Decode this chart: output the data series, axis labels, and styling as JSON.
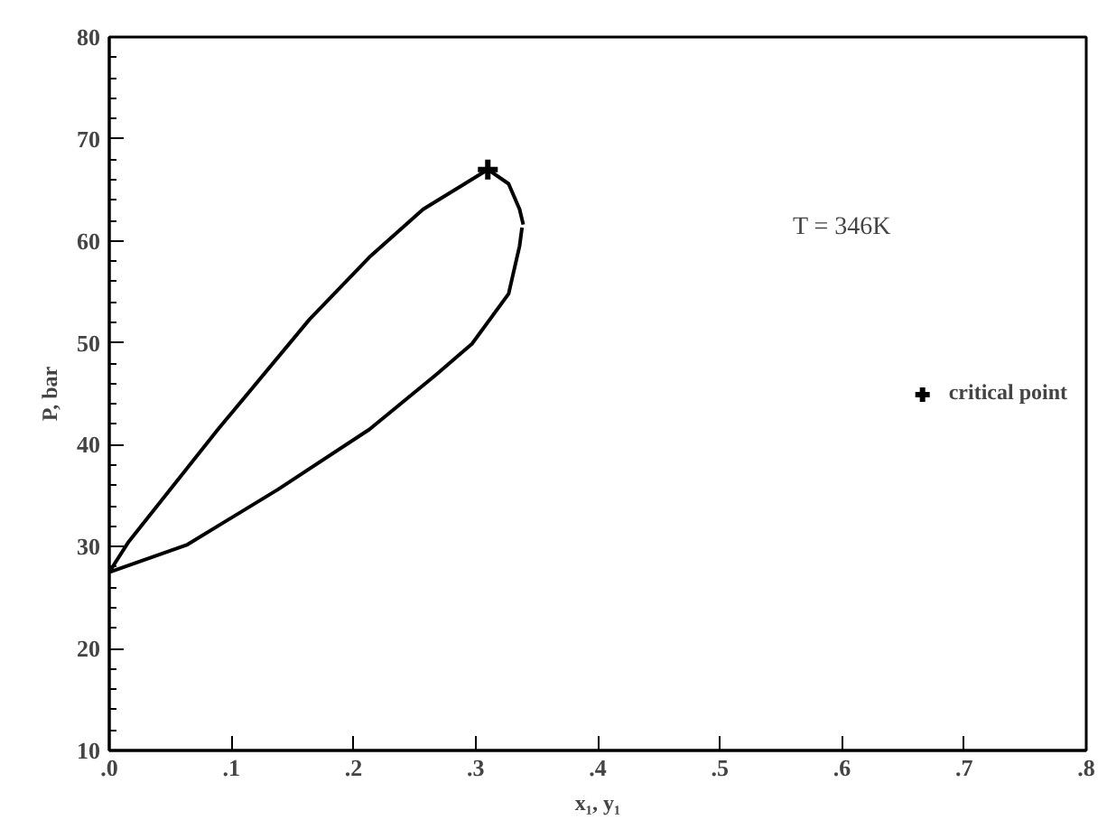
{
  "chart_data": {
    "type": "line",
    "xlabel": "x₁, y₁",
    "ylabel": "P, bar",
    "xlim": [
      0,
      0.8
    ],
    "ylim": [
      10,
      80
    ],
    "xticks": [
      {
        "value": 0,
        "label": ".0"
      },
      {
        "value": 0.1,
        "label": ".1"
      },
      {
        "value": 0.2,
        "label": ".2"
      },
      {
        "value": 0.3,
        "label": ".3"
      },
      {
        "value": 0.4,
        "label": ".4"
      },
      {
        "value": 0.5,
        "label": ".5"
      },
      {
        "value": 0.6,
        "label": ".6"
      },
      {
        "value": 0.7,
        "label": ".7"
      },
      {
        "value": 0.8,
        "label": ".8"
      }
    ],
    "yticks": [
      10,
      20,
      30,
      40,
      50,
      60,
      70,
      80
    ],
    "legend": "right",
    "series": [
      {
        "color": "#000000",
        "line_style": "solid",
        "x": [
          0.338,
          0.336,
          0.327,
          0.297,
          0.268,
          0.213,
          0.138,
          0.064,
          0,
          0.016,
          0.089,
          0.164,
          0.213,
          0.257,
          0.31,
          0.327,
          0.336,
          0.339
        ],
        "values": [
          61.3,
          59.5,
          54.8,
          49.9,
          46.9,
          41.5,
          35.6,
          30.2,
          27.5,
          30.5,
          41.5,
          52.3,
          58.4,
          63.1,
          67,
          65.6,
          63.1,
          61.6
        ]
      },
      {
        "type": "scatter",
        "name": "critical point",
        "color": "#000000",
        "marker": "cross",
        "x": [
          0.31
        ],
        "values": [
          67
        ]
      }
    ],
    "annotations": [
      "T = 346K"
    ]
  }
}
